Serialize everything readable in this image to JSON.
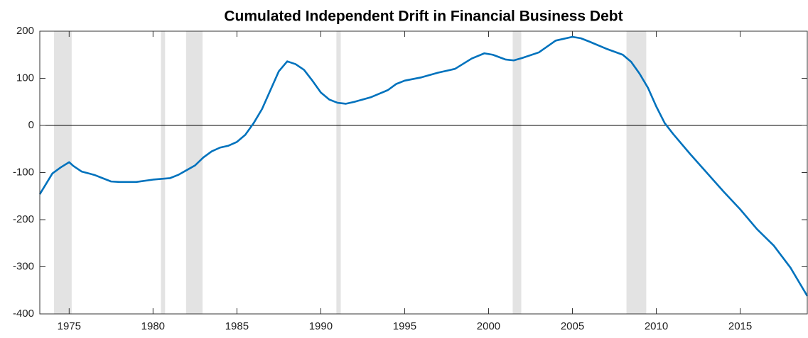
{
  "chart_data": {
    "type": "line",
    "title": "Cumulated Independent Drift in Financial Business Debt",
    "x": [
      1973.25,
      1974,
      1974.5,
      1975,
      1975.25,
      1975.75,
      1976.5,
      1977,
      1977.5,
      1978,
      1979,
      1980,
      1981,
      1981.5,
      1982,
      1982.5,
      1983,
      1983.5,
      1984,
      1984.5,
      1985,
      1985.5,
      1986,
      1986.5,
      1987,
      1987.5,
      1988,
      1988.5,
      1989,
      1989.5,
      1990,
      1990.5,
      1991,
      1991.5,
      1992,
      1993,
      1994,
      1994.5,
      1995,
      1996,
      1997,
      1998,
      1999,
      1999.75,
      2000.25,
      2001,
      2001.5,
      2002,
      2003,
      2004,
      2005,
      2005.5,
      2006,
      2007,
      2008,
      2008.5,
      2009,
      2009.5,
      2010,
      2010.5,
      2011,
      2012,
      2013,
      2014,
      2015,
      2016,
      2017,
      2018,
      2019
    ],
    "series": [
      {
        "color": "#0072bd",
        "values": [
          -146,
          -102,
          -89,
          -78,
          -86,
          -98,
          -105,
          -112,
          -119,
          -120,
          -120,
          -115,
          -112,
          -105,
          -95,
          -85,
          -68,
          -55,
          -47,
          -43,
          -35,
          -20,
          5,
          35,
          75,
          115,
          136,
          130,
          118,
          95,
          70,
          55,
          48,
          46,
          50,
          60,
          75,
          88,
          95,
          102,
          112,
          120,
          142,
          153,
          150,
          140,
          138,
          143,
          155,
          180,
          188,
          185,
          178,
          163,
          150,
          135,
          110,
          80,
          40,
          5,
          -18,
          -60,
          -100,
          -140,
          -178,
          -220,
          -255,
          -302,
          -362
        ]
      }
    ],
    "shaded_periods": [
      [
        1974.1,
        1975.15
      ],
      [
        1980.47,
        1980.72
      ],
      [
        1981.97,
        1982.95
      ],
      [
        1990.93,
        1991.19
      ],
      [
        2001.44,
        2001.95
      ],
      [
        2008.22,
        2009.4
      ]
    ],
    "shade_color": "#e3e3e3",
    "reference_line": 0,
    "xlim": [
      1973.25,
      2019
    ],
    "xticks": [
      1975,
      1980,
      1985,
      1990,
      1995,
      2000,
      2005,
      2010,
      2015
    ],
    "ylim": [
      -400,
      200
    ],
    "yticks": [
      -400,
      -300,
      -200,
      -100,
      0,
      100,
      200
    ]
  }
}
